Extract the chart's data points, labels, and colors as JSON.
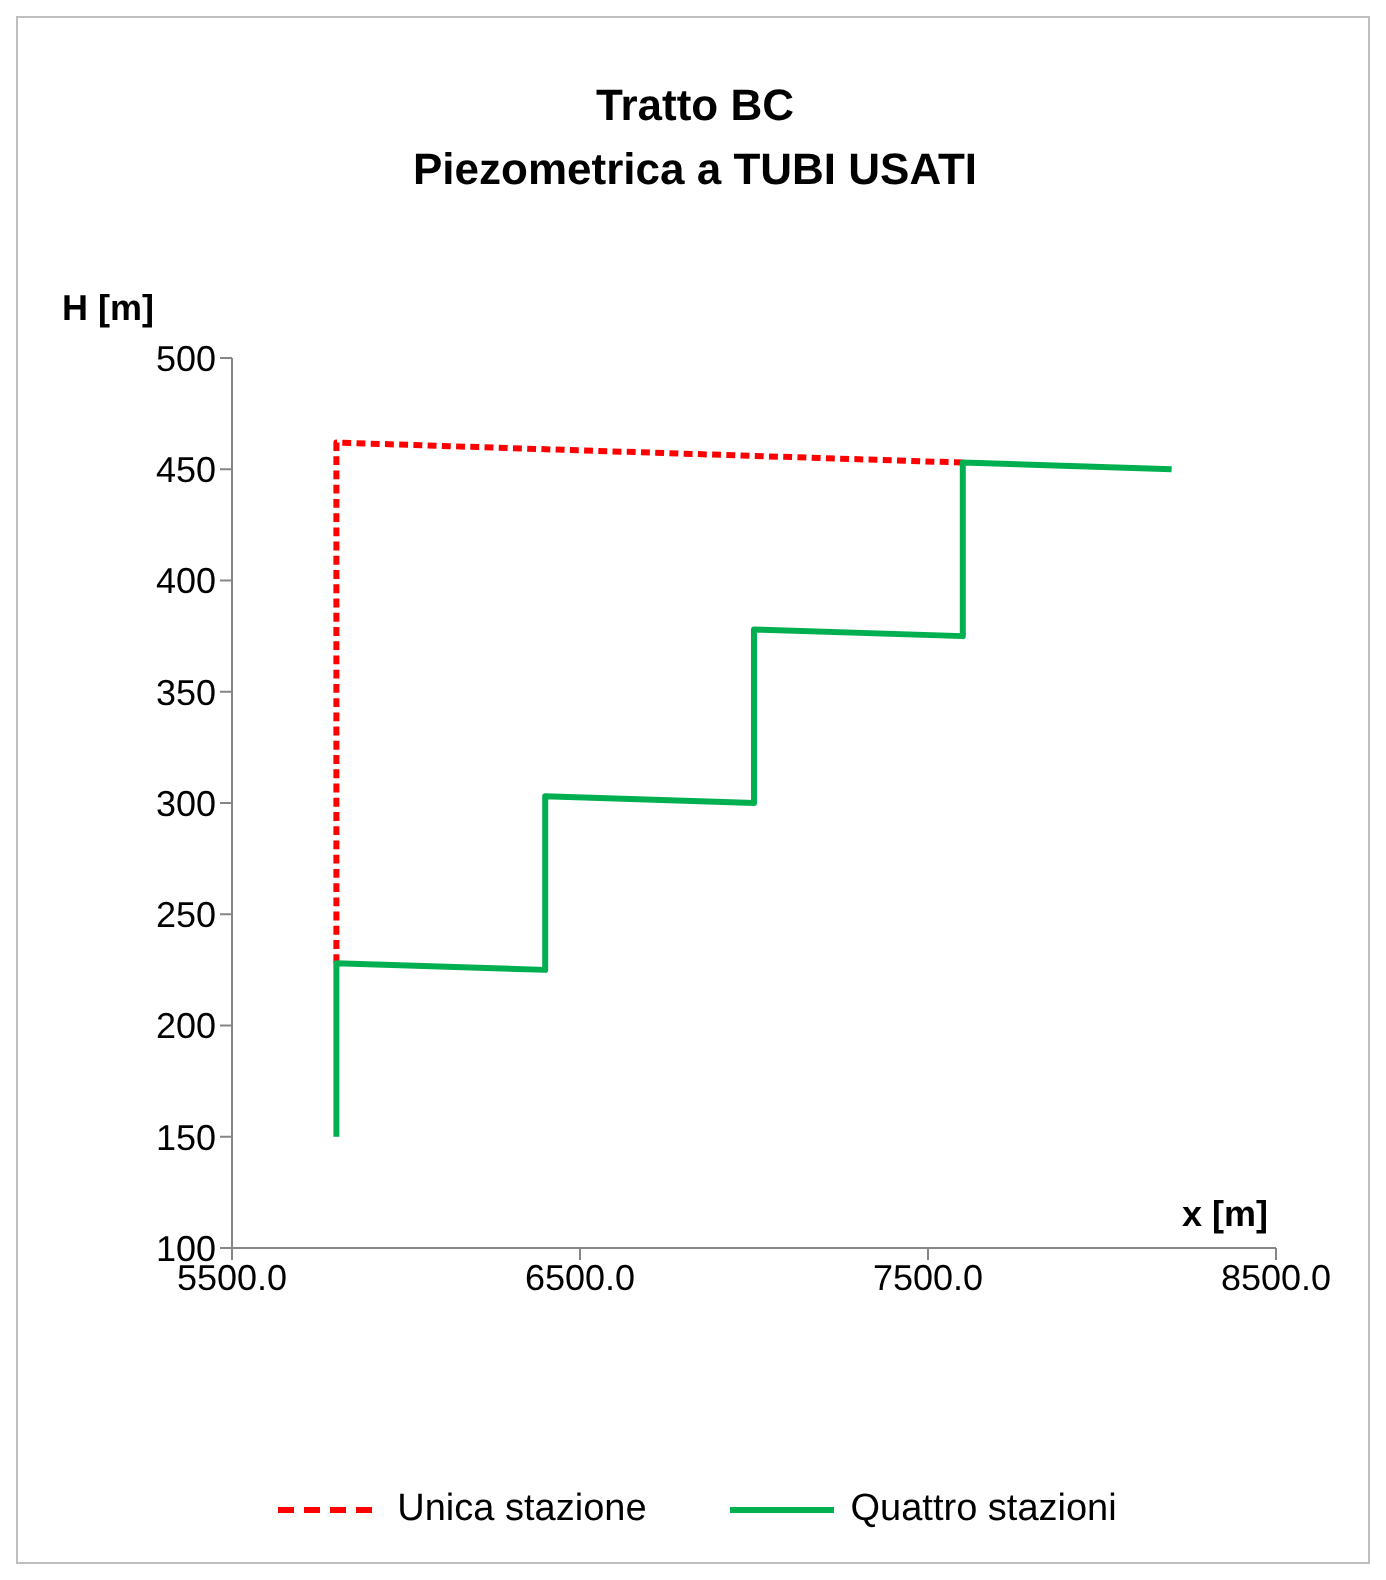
{
  "chart_data": {
    "type": "line",
    "title": "Tratto BC",
    "subtitle": "Piezometrica a TUBI USATI",
    "xlabel": "x [m]",
    "ylabel": "H [m]",
    "xlim": [
      5500,
      8500
    ],
    "xticks": [
      {
        "value": 5500,
        "label": "5500.0"
      },
      {
        "value": 6500,
        "label": "6500.0"
      },
      {
        "value": 7500,
        "label": "7500.0"
      },
      {
        "value": 8500,
        "label": "8500.0"
      }
    ],
    "ylim": [
      100,
      500
    ],
    "yticks": [
      100,
      150,
      200,
      250,
      300,
      350,
      400,
      450,
      500
    ],
    "grid": false,
    "legend": "bottom",
    "marker": "none",
    "series": [
      {
        "name": "Unica stazione",
        "color": "#ff0000",
        "line_style": "dashed",
        "x": [
          5800,
          5800,
          7600
        ],
        "values": [
          228,
          462,
          453
        ]
      },
      {
        "name": "Quattro stazioni",
        "color": "#00b050",
        "line_style": "solid",
        "x": [
          5800,
          5800,
          6400,
          6400,
          7000,
          7000,
          7600,
          7600,
          8200
        ],
        "values": [
          150,
          228,
          225,
          303,
          300,
          378,
          375,
          453,
          450
        ]
      }
    ]
  }
}
